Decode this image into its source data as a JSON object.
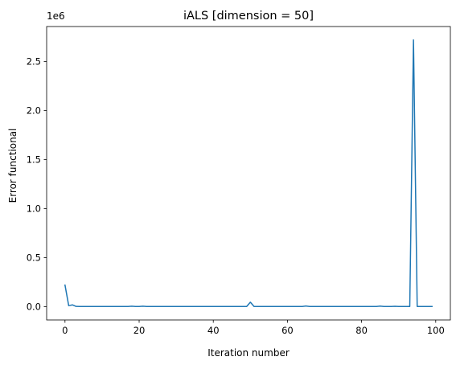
{
  "chart_data": {
    "type": "line",
    "title": "iALS [dimension = 50]",
    "xlabel": "Iteration number",
    "ylabel": "Error functional",
    "y_scale_label": "1e6",
    "xlim": [
      -4.95,
      103.95
    ],
    "ylim": [
      -136000,
      2856000
    ],
    "x_ticks": [
      0,
      20,
      40,
      60,
      80,
      100
    ],
    "x_tick_labels": [
      "0",
      "20",
      "40",
      "60",
      "80",
      "100"
    ],
    "y_ticks": [
      0,
      500000,
      1000000,
      1500000,
      2000000,
      2500000
    ],
    "y_tick_labels": [
      "0.0",
      "0.5",
      "1.0",
      "1.5",
      "2.0",
      "2.5"
    ],
    "grid": false,
    "series": [
      {
        "color": "#1f77b4",
        "x": [
          0,
          1,
          2,
          3,
          4,
          5,
          6,
          7,
          8,
          9,
          10,
          11,
          12,
          13,
          14,
          15,
          16,
          17,
          18,
          19,
          20,
          21,
          22,
          23,
          24,
          25,
          26,
          27,
          28,
          29,
          30,
          31,
          32,
          33,
          34,
          35,
          36,
          37,
          38,
          39,
          40,
          41,
          42,
          43,
          44,
          45,
          46,
          47,
          48,
          49,
          50,
          51,
          52,
          53,
          54,
          55,
          56,
          57,
          58,
          59,
          60,
          61,
          62,
          63,
          64,
          65,
          66,
          67,
          68,
          69,
          70,
          71,
          72,
          73,
          74,
          75,
          76,
          77,
          78,
          79,
          80,
          81,
          82,
          83,
          84,
          85,
          86,
          87,
          88,
          89,
          90,
          91,
          92,
          93,
          94,
          95,
          96,
          97,
          98,
          99
        ],
        "y": [
          220000,
          10000,
          18000,
          2000,
          1500,
          1500,
          1500,
          1500,
          1500,
          1500,
          1500,
          1500,
          1500,
          1500,
          1500,
          1500,
          1500,
          1500,
          4000,
          1500,
          1500,
          4000,
          1500,
          1500,
          1500,
          1500,
          1500,
          1500,
          1500,
          1500,
          1500,
          1500,
          1500,
          1500,
          1500,
          1500,
          1500,
          1500,
          1500,
          1500,
          1500,
          1500,
          1500,
          1500,
          1500,
          1500,
          1500,
          1500,
          1500,
          1500,
          45000,
          1500,
          1500,
          1500,
          1500,
          1500,
          1500,
          1500,
          1500,
          1500,
          1500,
          1500,
          1500,
          1500,
          1500,
          6000,
          1500,
          1500,
          1500,
          1500,
          1500,
          1500,
          1500,
          1500,
          1500,
          1500,
          1500,
          1500,
          1500,
          1500,
          1500,
          1500,
          1500,
          1500,
          1500,
          5000,
          1500,
          1500,
          1500,
          3000,
          1500,
          1500,
          1500,
          1500,
          2720000,
          1500,
          1500,
          1500,
          1500,
          1500
        ]
      }
    ]
  }
}
